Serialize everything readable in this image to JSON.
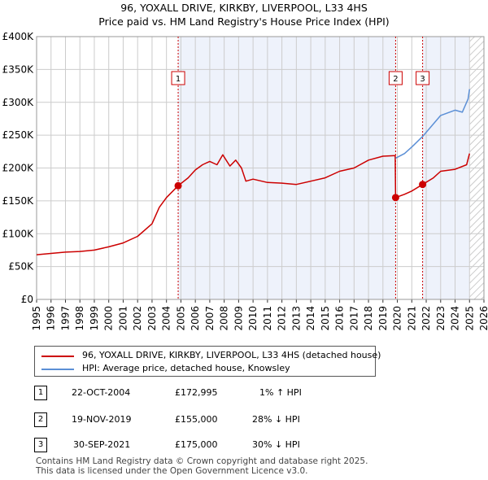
{
  "chart_data": {
    "type": "line",
    "title": "96, YOXALL DRIVE, KIRKBY, LIVERPOOL, L33 4HS",
    "subtitle": "Price paid vs. HM Land Registry's House Price Index (HPI)",
    "xlim": [
      1995,
      2026
    ],
    "ylim": [
      0,
      400000
    ],
    "x_ticks": [
      "1995",
      "1996",
      "1997",
      "1998",
      "1999",
      "2000",
      "2001",
      "2002",
      "2003",
      "2004",
      "2005",
      "2006",
      "2007",
      "2008",
      "2009",
      "2010",
      "2011",
      "2012",
      "2013",
      "2014",
      "2015",
      "2016",
      "2017",
      "2018",
      "2019",
      "2020",
      "2021",
      "2022",
      "2023",
      "2024",
      "2025",
      "2026"
    ],
    "y_ticks": [
      {
        "value": 0,
        "label": "£0"
      },
      {
        "value": 50000,
        "label": "£50K"
      },
      {
        "value": 100000,
        "label": "£100K"
      },
      {
        "value": 150000,
        "label": "£150K"
      },
      {
        "value": 200000,
        "label": "£200K"
      },
      {
        "value": 250000,
        "label": "£250K"
      },
      {
        "value": 300000,
        "label": "£300K"
      },
      {
        "value": 350000,
        "label": "£350K"
      },
      {
        "value": 400000,
        "label": "£400K"
      }
    ],
    "series": [
      {
        "name": "96, YOXALL DRIVE, KIRKBY, LIVERPOOL, L33 4HS (detached house)",
        "color": "#cc0000",
        "x": [
          1995.0,
          1996.0,
          1997.0,
          1998.0,
          1999.0,
          2000.0,
          2001.0,
          2002.0,
          2003.0,
          2003.5,
          2004.0,
          2004.81,
          2005.5,
          2006.0,
          2006.5,
          2007.0,
          2007.5,
          2007.9,
          2008.4,
          2008.8,
          2009.2,
          2009.5,
          2010.0,
          2011.0,
          2012.0,
          2013.0,
          2014.0,
          2015.0,
          2016.0,
          2017.0,
          2018.0,
          2019.0,
          2019.85,
          2019.88,
          2020.5,
          2021.0,
          2021.75,
          2022.5,
          2023.0,
          2024.0,
          2024.8,
          2025.0
        ],
        "values": [
          68000,
          70000,
          72000,
          73000,
          75000,
          80000,
          86000,
          96000,
          115000,
          140000,
          155000,
          172995,
          185000,
          197000,
          205000,
          210000,
          205000,
          220000,
          203000,
          212000,
          200000,
          180000,
          183000,
          178000,
          177000,
          175000,
          180000,
          185000,
          195000,
          200000,
          212000,
          218000,
          219000,
          155000,
          160000,
          165000,
          175000,
          185000,
          195000,
          198000,
          205000,
          222000
        ]
      },
      {
        "name": "HPI: Average price, detached house, Knowsley",
        "color": "#5b8fd6",
        "x": [
          2019.88,
          2020.5,
          2021.0,
          2021.75,
          2022.3,
          2023.0,
          2024.0,
          2024.5,
          2024.9,
          2025.0
        ],
        "values": [
          215000,
          222000,
          232000,
          248000,
          262000,
          280000,
          288000,
          285000,
          305000,
          320000
        ]
      }
    ],
    "transactions": [
      {
        "num": "1",
        "x": 2004.81,
        "value": 172995,
        "date": "22-OCT-2004",
        "price": "£172,995",
        "hpi": "1% ↑ HPI"
      },
      {
        "num": "2",
        "x": 2019.88,
        "value": 155000,
        "date": "19-NOV-2019",
        "price": "£155,000",
        "hpi": "28% ↓ HPI"
      },
      {
        "num": "3",
        "x": 2021.75,
        "value": 175000,
        "date": "30-SEP-2021",
        "price": "£175,000",
        "hpi": "30% ↓ HPI"
      }
    ],
    "future_hatch_from": 2025.0,
    "grid": true,
    "legend_position": "below"
  },
  "footer": {
    "line1": "Contains HM Land Registry data © Crown copyright and database right 2025.",
    "line2": "This data is licensed under the Open Government Licence v3.0."
  },
  "colors": {
    "plot_bg": "#ffffff",
    "shaded_bg": "#eef2fb",
    "grid": "#cccccc",
    "marker_line": "#cc0000"
  }
}
